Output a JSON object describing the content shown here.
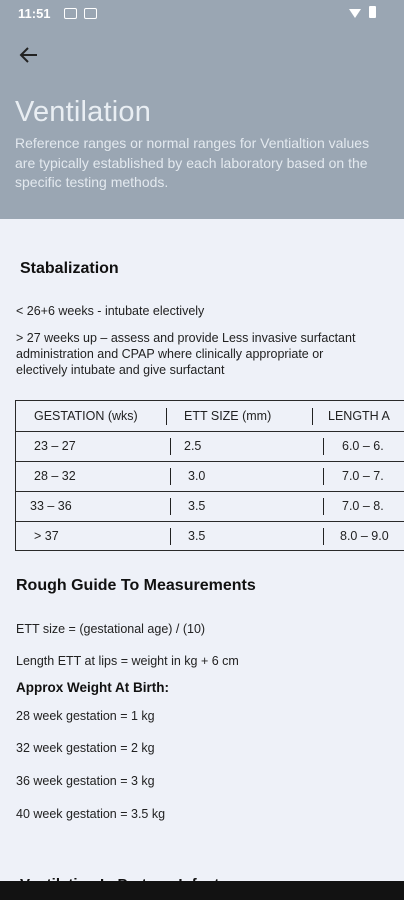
{
  "status_bar": {
    "time": "11:51"
  },
  "header": {
    "title": "Ventilation",
    "subtitle": "Reference ranges or normal ranges for Ventialtion values are typically established by each laboratory based on the specific testing methods."
  },
  "stabalization": {
    "heading": "Stabalization",
    "line1": "< 26+6 weeks - intubate electively",
    "line2": "> 27 weeks up – assess and provide Less invasive surfactant administration and CPAP where clinically appropriate or electively intubate and give surfactant"
  },
  "table": {
    "headers": [
      "GESTATION (wks)",
      "ETT SIZE (mm)",
      "LENGTH A"
    ],
    "rows": [
      [
        "23 – 27",
        "2.5",
        "6.0 – 6."
      ],
      [
        "28 – 32",
        "3.0",
        "7.0 – 7."
      ],
      [
        "33 – 36",
        "3.5",
        "7.0 – 8."
      ],
      [
        "> 37",
        "3.5",
        "8.0 – 9.0"
      ]
    ]
  },
  "measurements": {
    "heading": "Rough Guide To Measurements",
    "ett_size": "ETT size = (gestational age) / (10)",
    "length": "Length ETT at lips = weight in kg + 6 cm",
    "weight_heading": "Approx Weight At Birth:",
    "w28": "28 week gestation = 1 kg",
    "w32": "32 week gestation = 2 kg",
    "w36": "36 week gestation = 3 kg",
    "w40": "40 week gestation = 3.5 kg"
  },
  "next_section": {
    "heading": "Ventilation In Preterm Infants"
  }
}
